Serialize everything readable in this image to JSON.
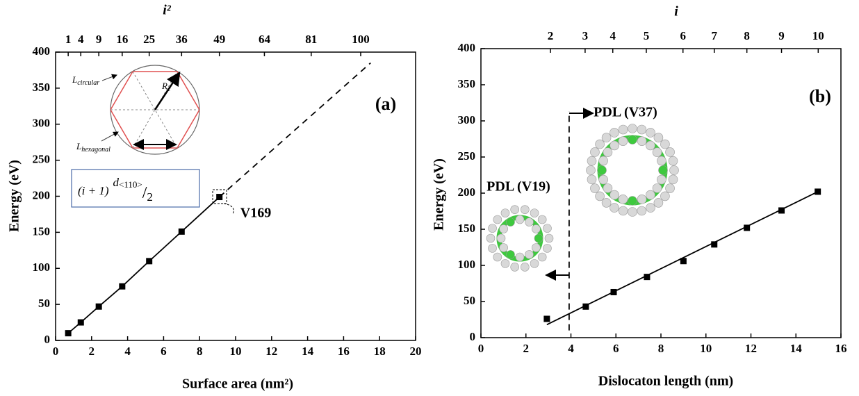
{
  "chart_data": [
    {
      "type": "line",
      "x_label": "Surface area (nm²)",
      "y_label": "Energy (eV)",
      "x2_label": "i²",
      "xlim": [
        0,
        20
      ],
      "xticks": [
        0,
        2,
        4,
        6,
        8,
        10,
        12,
        14,
        16,
        18,
        20
      ],
      "ylim": [
        0,
        400
      ],
      "yticks": [
        0,
        50,
        100,
        150,
        200,
        250,
        300,
        350,
        400
      ],
      "x2ticks": [
        {
          "value": 0.7,
          "label": "1"
        },
        {
          "value": 1.4,
          "label": "4"
        },
        {
          "value": 2.4,
          "label": "9"
        },
        {
          "value": 3.7,
          "label": "16"
        },
        {
          "value": 5.2,
          "label": "25"
        },
        {
          "value": 7.0,
          "label": "36"
        },
        {
          "value": 9.1,
          "label": "49"
        },
        {
          "value": 11.6,
          "label": "64"
        },
        {
          "value": 14.2,
          "label": "81"
        },
        {
          "value": 16.95,
          "label": "100"
        }
      ],
      "series": [
        {
          "color": "#000000",
          "x": [
            0.7,
            1.4,
            2.4,
            3.7,
            5.2,
            7.0,
            9.1
          ],
          "values": [
            10,
            25,
            47,
            75,
            110,
            151,
            199
          ]
        }
      ],
      "extrapolation": {
        "x": [
          9.1,
          17.5
        ],
        "values": [
          199,
          385
        ]
      },
      "annotations": [
        "(a)",
        "V169"
      ],
      "inset": {
        "circular": [
          "L",
          "circular"
        ],
        "radius": [
          "R",
          "c"
        ],
        "hexagonal": [
          "L",
          "hexagonal"
        ],
        "formula": [
          "(i + 1)",
          "d",
          "<110>",
          "/",
          "2"
        ]
      }
    },
    {
      "type": "line",
      "x_label": "Dislocaton length (nm)",
      "y_label": "Energy (eV)",
      "x2_label": "i",
      "xlim": [
        0,
        16
      ],
      "xticks": [
        0,
        2,
        4,
        6,
        8,
        10,
        12,
        14,
        16
      ],
      "ylim": [
        0,
        400
      ],
      "yticks": [
        0,
        50,
        100,
        150,
        200,
        250,
        300,
        350,
        400
      ],
      "x2ticks": [
        {
          "value": 3.09,
          "label": "2"
        },
        {
          "value": 4.63,
          "label": "3"
        },
        {
          "value": 5.86,
          "label": "4"
        },
        {
          "value": 7.35,
          "label": "5"
        },
        {
          "value": 8.98,
          "label": "6"
        },
        {
          "value": 10.37,
          "label": "7"
        },
        {
          "value": 11.82,
          "label": "8"
        },
        {
          "value": 13.36,
          "label": "9"
        },
        {
          "value": 14.99,
          "label": "10"
        }
      ],
      "series": [
        {
          "color": "#000000",
          "x": [
            2.93,
            4.66,
            5.9,
            7.38,
            9.0,
            10.37,
            11.82,
            13.36,
            14.97
          ],
          "values": [
            26,
            43,
            63,
            84,
            106,
            129,
            152,
            176,
            202
          ]
        }
      ],
      "fit": {
        "x": [
          2.93,
          14.97
        ],
        "values": [
          18,
          202
        ]
      },
      "divider": {
        "x": [
          3.92,
          3.92
        ],
        "values": [
          10,
          313
        ]
      },
      "annotations": [
        "(b)",
        "PDL (V19)",
        "PDL (V37)"
      ]
    }
  ]
}
